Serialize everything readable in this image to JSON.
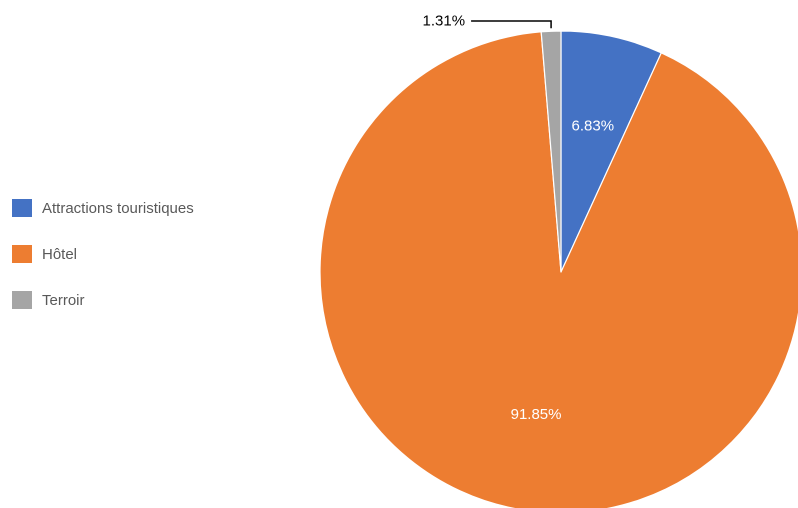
{
  "chart_data": {
    "type": "pie",
    "title": "",
    "start_angle_deg": 0,
    "direction": "clockwise",
    "legend_position": "left",
    "slices": [
      {
        "label": "Attractions touristiques",
        "value": 6.83,
        "value_label": "6.83%",
        "color": "#4472C4",
        "label_color": "#ffffff",
        "leader_line": false
      },
      {
        "label": "Hôtel",
        "value": 91.85,
        "value_label": "91.85%",
        "color": "#ED7D31",
        "label_color": "#ffffff",
        "leader_line": false
      },
      {
        "label": "Terroir",
        "value": 1.31,
        "value_label": "1.31%",
        "color": "#A5A5A5",
        "label_color": "#000000",
        "leader_line": true
      }
    ]
  },
  "legend": {
    "items": [
      {
        "label": "Attractions touristiques",
        "color": "#4472C4"
      },
      {
        "label": "Hôtel",
        "color": "#ED7D31"
      },
      {
        "label": "Terroir",
        "color": "#A5A5A5"
      }
    ]
  }
}
